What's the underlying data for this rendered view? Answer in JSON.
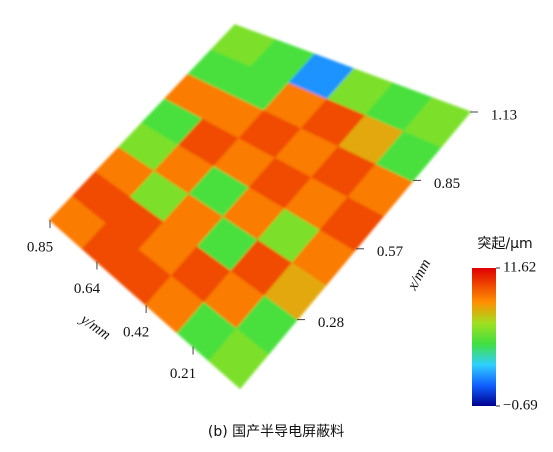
{
  "chart_data": {
    "type": "surface",
    "caption": "(b) 国产半导电屏蔽料",
    "xlabel": "x/mm",
    "ylabel": "y/mm",
    "xlim": [
      0,
      1.13
    ],
    "xticks": [
      0.28,
      0.57,
      0.85,
      1.13
    ],
    "ylim": [
      0,
      0.85
    ],
    "yticks": [
      0.21,
      0.42,
      0.64,
      0.85
    ],
    "colorbar_title": "突起/μm",
    "clim": [
      -0.69,
      11.62
    ],
    "cticks": [
      11.62,
      {
        "value": -0.69,
        "label": "−0.69"
      }
    ],
    "z": [
      [
        6,
        5,
        8,
        9,
        10,
        9,
        5,
        6
      ],
      [
        5,
        9,
        10,
        6,
        9,
        10,
        8,
        5
      ],
      [
        9,
        10,
        5,
        9,
        10,
        9,
        10,
        6
      ],
      [
        10,
        9,
        9,
        5,
        9,
        10,
        9,
        2
      ],
      [
        10,
        10,
        6,
        9,
        10,
        9,
        5,
        5
      ],
      [
        9,
        10,
        9,
        6,
        5,
        9,
        5,
        6
      ]
    ]
  }
}
